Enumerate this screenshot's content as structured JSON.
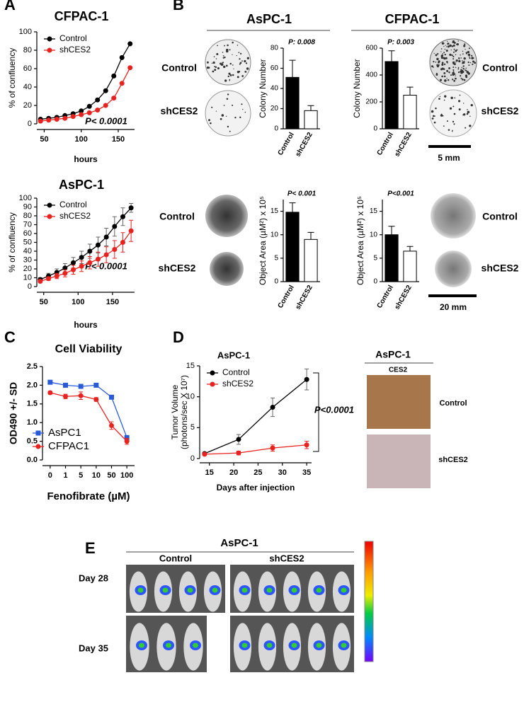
{
  "panel_labels": [
    "A",
    "B",
    "C",
    "D",
    "E"
  ],
  "images": {
    "b": {
      "cell_lines": [
        "AsPC-1",
        "CFPAC-1"
      ],
      "groups": [
        "Control",
        "shCES2"
      ],
      "scale_bars": [
        "5 mm",
        "20 mm"
      ]
    },
    "d": {
      "title": "AsPC-1",
      "stain": "CES2",
      "groups": [
        "Control",
        "shCES2"
      ]
    },
    "e": {
      "title": "AsPC-1",
      "groups": [
        "Control",
        "shCES2"
      ],
      "days": [
        "Day 28",
        "Day 35"
      ]
    }
  },
  "chart_data": [
    {
      "type": "line",
      "title": "CFPAC-1",
      "xlabel": "hours",
      "ylabel": "% of confluency",
      "annotation": "P< 0.0001",
      "legend": "upper left",
      "x": [
        45,
        56,
        67,
        78,
        89,
        100,
        111,
        122,
        133,
        144,
        155,
        166
      ],
      "xlim": [
        40,
        172
      ],
      "xticks": [
        50,
        100,
        150
      ],
      "ylim": [
        0,
        100
      ],
      "yticks": [
        0,
        20,
        40,
        60,
        80,
        100
      ],
      "series": [
        {
          "name": "Control",
          "color": "#000000",
          "marker": "circle",
          "values": [
            5,
            6,
            7,
            9,
            11,
            14,
            19,
            26,
            36,
            52,
            72,
            87
          ]
        },
        {
          "name": "shCES2",
          "color": "#e8231f",
          "marker": "circle",
          "values": [
            3,
            4,
            5,
            6,
            8,
            10,
            12,
            15,
            20,
            28,
            44,
            61
          ]
        }
      ]
    },
    {
      "type": "line",
      "title": "AsPC-1",
      "xlabel": "hours",
      "ylabel": "% of confluency",
      "annotation": "P< 0.0001",
      "legend": "upper left",
      "x": [
        45,
        57,
        69,
        81,
        93,
        105,
        117,
        129,
        141,
        153,
        165,
        177
      ],
      "xlim": [
        40,
        182
      ],
      "xticks": [
        50,
        100,
        150
      ],
      "ylim": [
        0,
        100
      ],
      "yticks": [
        0,
        10,
        20,
        30,
        40,
        50,
        60,
        70,
        80,
        90,
        100
      ],
      "series": [
        {
          "name": "Control",
          "color": "#000000",
          "marker": "circle",
          "values": [
            8,
            12,
            16,
            21,
            27,
            33,
            40,
            47,
            56,
            68,
            79,
            89
          ],
          "errors": [
            2,
            3,
            4,
            5,
            6,
            7,
            8,
            9,
            10,
            11,
            10,
            5
          ]
        },
        {
          "name": "shCES2",
          "color": "#e8231f",
          "marker": "circle",
          "values": [
            6,
            9,
            12,
            15,
            19,
            23,
            27,
            31,
            36,
            42,
            50,
            63
          ],
          "errors": [
            1,
            2,
            3,
            4,
            5,
            6,
            7,
            8,
            9,
            10,
            11,
            12
          ]
        }
      ]
    },
    {
      "type": "bar",
      "ylabel": "Colony Number",
      "annotation": "P: 0.008",
      "categories": [
        "Control",
        "shCES2"
      ],
      "values": [
        51,
        18
      ],
      "errors": [
        17,
        5
      ],
      "colors": [
        "#000000",
        "#ffffff"
      ],
      "ylim": [
        0,
        80
      ],
      "yticks": [
        0,
        20,
        40,
        60,
        80
      ]
    },
    {
      "type": "bar",
      "ylabel": "Colony Number",
      "annotation": "P: 0.003",
      "categories": [
        "Control",
        "shCES2"
      ],
      "values": [
        500,
        250
      ],
      "errors": [
        80,
        60
      ],
      "colors": [
        "#000000",
        "#ffffff"
      ],
      "ylim": [
        0,
        600
      ],
      "yticks": [
        0,
        200,
        400,
        600
      ]
    },
    {
      "type": "bar",
      "ylabel": "Object Area (µM²) x 10⁵",
      "annotation": "P< 0.001",
      "categories": [
        "Control",
        "shCES2"
      ],
      "values": [
        14.8,
        9
      ],
      "errors": [
        2,
        1.5
      ],
      "colors": [
        "#000000",
        "#ffffff"
      ],
      "ylim": [
        0,
        17.5
      ],
      "yticks": [
        0,
        5,
        10,
        15
      ]
    },
    {
      "type": "bar",
      "ylabel": "Object Area (µM²) x 10⁵",
      "annotation": "P<0.001",
      "categories": [
        "Control",
        "shCES2"
      ],
      "values": [
        10,
        6.5
      ],
      "errors": [
        1.8,
        1
      ],
      "colors": [
        "#000000",
        "#ffffff"
      ],
      "ylim": [
        0,
        17.5
      ],
      "yticks": [
        0,
        5,
        10,
        15
      ]
    },
    {
      "type": "line",
      "title": "Cell Viability",
      "xlabel": "Fenofibrate (µM)",
      "ylabel": "OD490 +/- SD",
      "legend": "lower left",
      "categories": [
        "0",
        "1",
        "5",
        "10",
        "50",
        "100"
      ],
      "ylim": [
        0,
        2.5
      ],
      "yticks": [
        {
          "value": 0,
          "label": "0.0"
        },
        0.5,
        {
          "value": 1,
          "label": "1.0"
        },
        1.5,
        {
          "value": 2,
          "label": "2.0"
        },
        2.5
      ],
      "series": [
        {
          "name": "AsPC1",
          "color": "#2a5bd7",
          "marker": "square",
          "values": [
            2.08,
            2.0,
            1.97,
            2.0,
            1.68,
            0.6
          ],
          "errors": [
            0.02,
            0.03,
            0.03,
            0.03,
            0.03,
            0.04
          ]
        },
        {
          "name": "CFPAC1",
          "color": "#e8231f",
          "marker": "circle",
          "values": [
            1.8,
            1.7,
            1.72,
            1.62,
            0.92,
            0.5
          ],
          "errors": [
            0.04,
            0.06,
            0.1,
            0.05,
            0.1,
            0.08
          ]
        }
      ]
    },
    {
      "type": "line",
      "title": "AsPC-1",
      "xlabel": "Days after injection",
      "ylabel": [
        "Tumor Volume",
        "(photons/sec X 10⁷)"
      ],
      "annotation": "P<0.0001",
      "legend": "upper left",
      "x": [
        14,
        21,
        28,
        35
      ],
      "xlim": [
        13,
        36
      ],
      "xticks": [
        15,
        20,
        25,
        30,
        35
      ],
      "ylim": [
        0,
        15
      ],
      "yticks": [
        0,
        5,
        10,
        15
      ],
      "series": [
        {
          "name": "Control",
          "color": "#000000",
          "marker": "circle",
          "values": [
            0.8,
            3.1,
            8.3,
            12.8
          ],
          "errors": [
            0.2,
            0.8,
            1.5,
            1.7
          ]
        },
        {
          "name": "shCES2",
          "color": "#e8231f",
          "marker": "circle",
          "values": [
            0.7,
            0.9,
            1.7,
            2.2
          ],
          "errors": [
            0.2,
            0.3,
            0.5,
            0.6
          ]
        }
      ]
    }
  ]
}
